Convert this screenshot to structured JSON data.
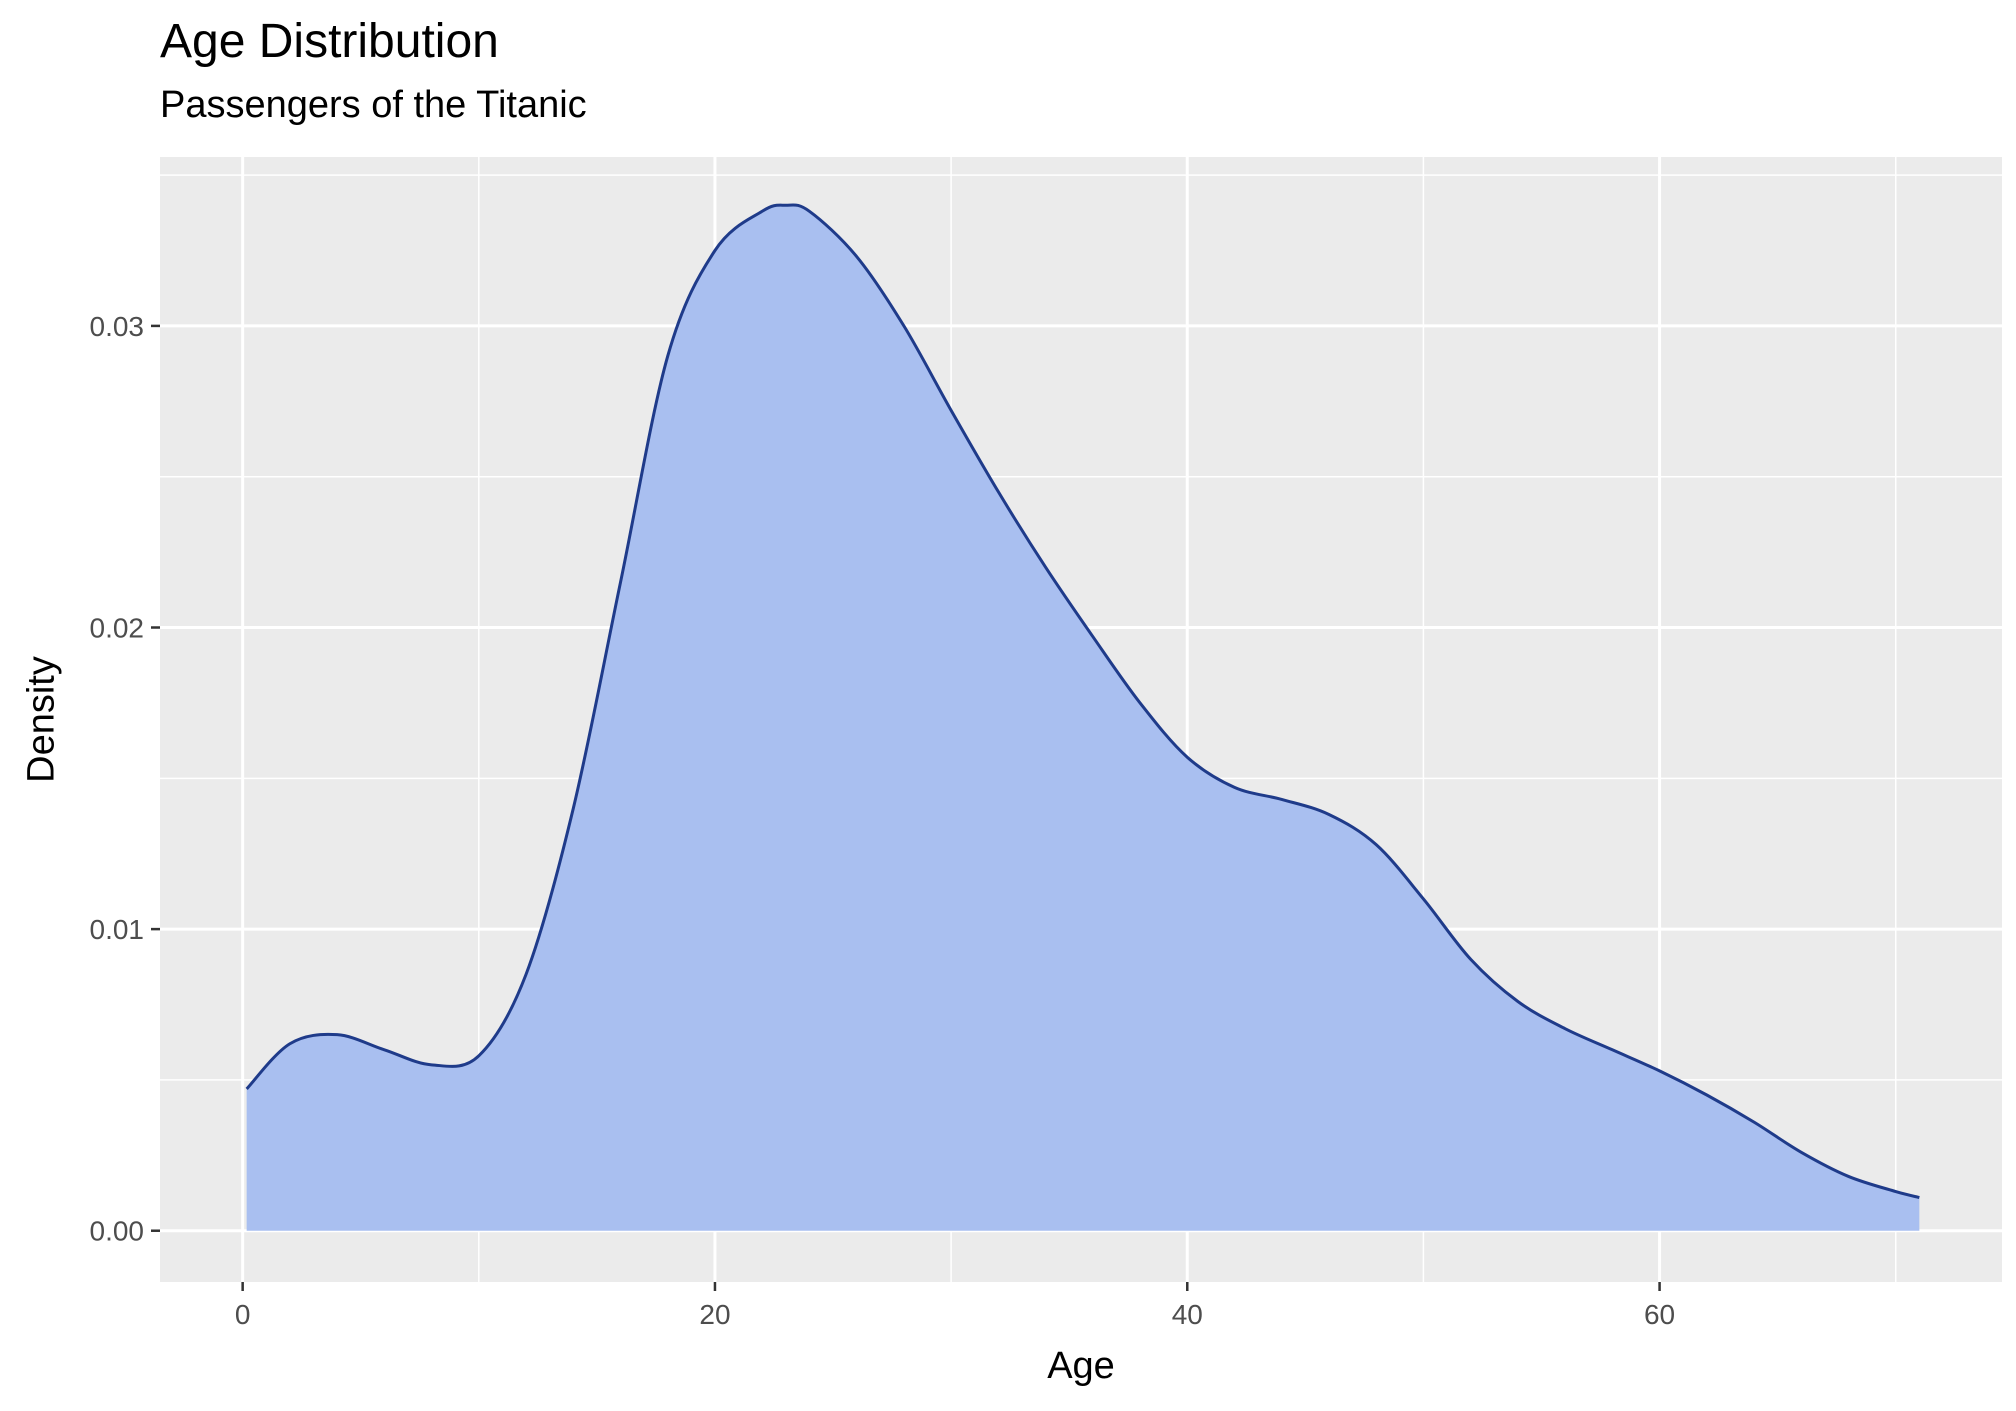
{
  "chart_data": {
    "type": "area",
    "title": "Age Distribution",
    "subtitle": "Passengers of the Titanic",
    "xlabel": "Age",
    "ylabel": "Density",
    "xlim": [
      -3.5,
      74.5
    ],
    "ylim": [
      -0.0017,
      0.0356
    ],
    "x_ticks": [
      0,
      20,
      40,
      60
    ],
    "y_ticks": [
      0.0,
      0.01,
      0.02,
      0.03
    ],
    "x_tick_labels": [
      "0",
      "20",
      "40",
      "60"
    ],
    "y_tick_labels": [
      "0.00",
      "0.01",
      "0.02",
      "0.03"
    ],
    "grid": true,
    "legend": "none",
    "series": [
      {
        "x": [
          0.17,
          2,
          4,
          6,
          8,
          10,
          12,
          14,
          16,
          18,
          20,
          22,
          23,
          24,
          26,
          28,
          30,
          32,
          34,
          36,
          38,
          40,
          42,
          44,
          46,
          48,
          50,
          52,
          54,
          56,
          58,
          60,
          62,
          64,
          66,
          68,
          70,
          71
        ],
        "y": [
          0.0047,
          0.0062,
          0.0065,
          0.006,
          0.0055,
          0.0058,
          0.0085,
          0.014,
          0.0215,
          0.029,
          0.0325,
          0.0338,
          0.034,
          0.0338,
          0.0323,
          0.03,
          0.0272,
          0.0245,
          0.022,
          0.0197,
          0.0175,
          0.0157,
          0.0147,
          0.0143,
          0.0138,
          0.0128,
          0.011,
          0.009,
          0.0076,
          0.0067,
          0.006,
          0.0053,
          0.0045,
          0.0036,
          0.0026,
          0.0018,
          0.0013,
          0.0011
        ]
      }
    ]
  },
  "colors": {
    "fill": "#a9bff0",
    "line": "#1f3b8a",
    "panel": "#ebebeb",
    "grid": "#ffffff"
  }
}
